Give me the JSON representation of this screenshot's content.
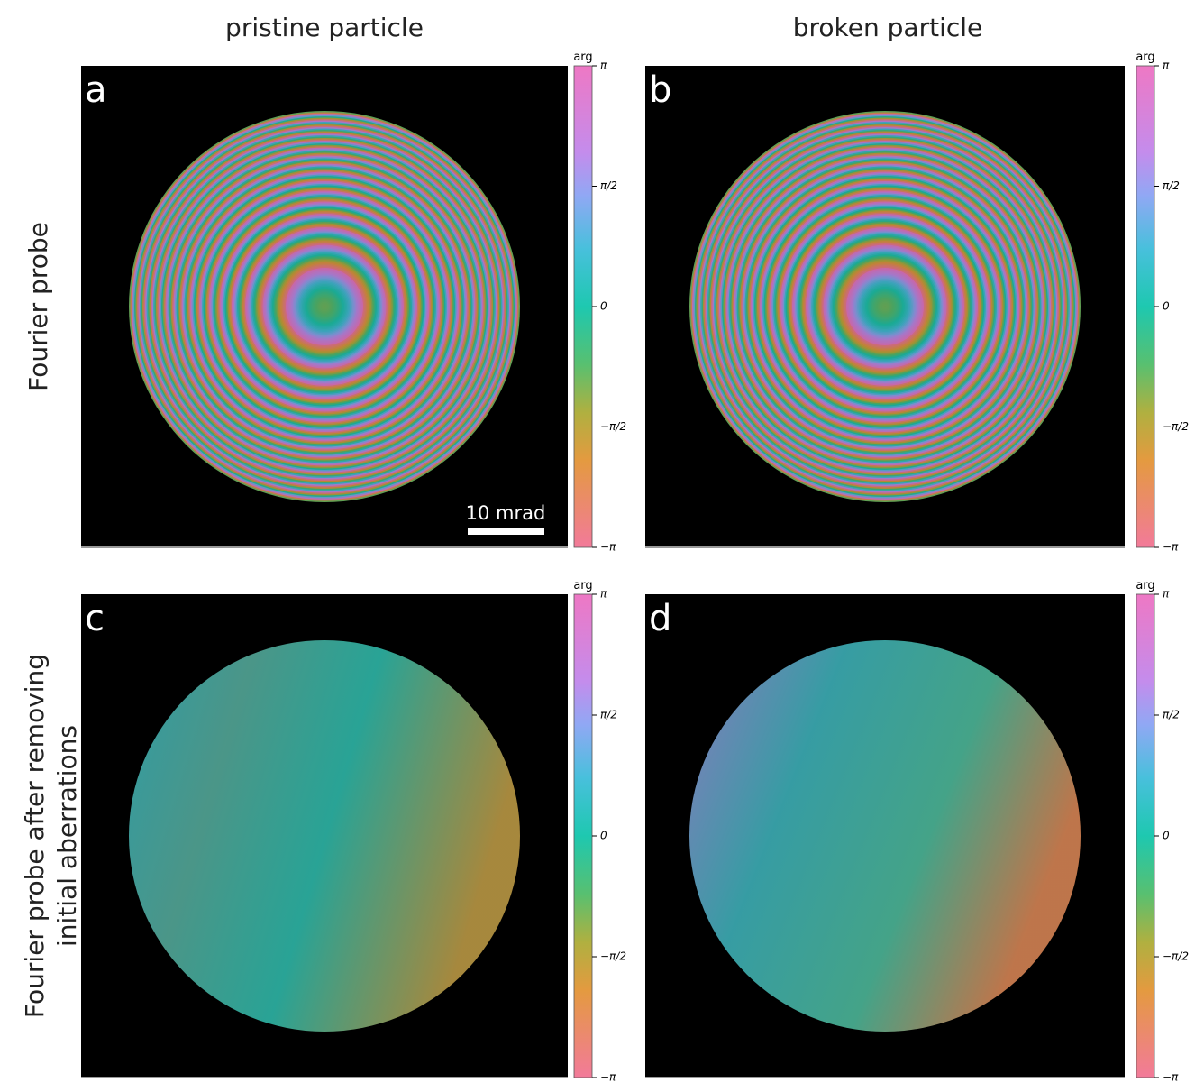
{
  "columns": [
    "pristine particle",
    "broken particle"
  ],
  "rows": [
    [
      "Fourier probe"
    ],
    [
      "Fourier probe after removing",
      "initial aberrations"
    ]
  ],
  "panels": [
    {
      "letter": "a"
    },
    {
      "letter": "b"
    },
    {
      "letter": "c"
    },
    {
      "letter": "d"
    }
  ],
  "scale_bar": "10 mrad",
  "colorbar": {
    "label": "arg",
    "ticks": [
      {
        "value": 3.14159,
        "label": "π"
      },
      {
        "value": 1.5708,
        "label": "π/2"
      },
      {
        "value": 0,
        "label": "0"
      },
      {
        "value": -1.5708,
        "label": "−π/2"
      },
      {
        "value": -3.14159,
        "label": "−π"
      }
    ]
  }
}
